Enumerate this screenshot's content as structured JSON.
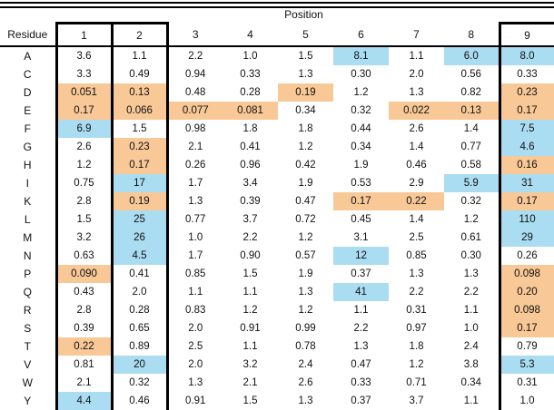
{
  "colors": {
    "highlight_blue": "#aadcf2",
    "highlight_orange": "#f8c897",
    "border": "#000000"
  },
  "chart_data": {
    "type": "table",
    "title": "Position",
    "row_header": "Residue",
    "columns": [
      "1",
      "2",
      "3",
      "4",
      "5",
      "6",
      "7",
      "8",
      "9"
    ],
    "boxed_columns": [
      "1",
      "2",
      "9"
    ],
    "highlight_legend": {
      "b": "blue",
      "o": "orange",
      "n": "none"
    },
    "rows": [
      {
        "residue": "A",
        "values": [
          "3.6",
          "1.1",
          "2.2",
          "1.0",
          "1.5",
          "8.1",
          "1.1",
          "6.0",
          "8.0"
        ],
        "highlights": [
          "n",
          "n",
          "n",
          "n",
          "n",
          "b",
          "n",
          "b",
          "b"
        ]
      },
      {
        "residue": "C",
        "values": [
          "3.3",
          "0.49",
          "0.94",
          "0.33",
          "1.3",
          "0.30",
          "2.0",
          "0.56",
          "0.33"
        ],
        "highlights": [
          "n",
          "n",
          "n",
          "n",
          "n",
          "n",
          "n",
          "n",
          "n"
        ]
      },
      {
        "residue": "D",
        "values": [
          "0.051",
          "0.13",
          "0.48",
          "0.28",
          "0.19",
          "1.2",
          "1.3",
          "0.82",
          "0.23"
        ],
        "highlights": [
          "o",
          "o",
          "n",
          "n",
          "o",
          "n",
          "n",
          "n",
          "o"
        ]
      },
      {
        "residue": "E",
        "values": [
          "0.17",
          "0.066",
          "0.077",
          "0.081",
          "0.34",
          "0.32",
          "0.022",
          "0.13",
          "0.17"
        ],
        "highlights": [
          "o",
          "o",
          "o",
          "o",
          "n",
          "n",
          "o",
          "o",
          "o"
        ]
      },
      {
        "residue": "F",
        "values": [
          "6.9",
          "1.5",
          "0.98",
          "1.8",
          "1.8",
          "0.44",
          "2.6",
          "1.4",
          "7.5"
        ],
        "highlights": [
          "b",
          "n",
          "n",
          "n",
          "n",
          "n",
          "n",
          "n",
          "b"
        ]
      },
      {
        "residue": "G",
        "values": [
          "2.6",
          "0.23",
          "2.1",
          "0.41",
          "1.2",
          "0.34",
          "1.4",
          "0.77",
          "4.6"
        ],
        "highlights": [
          "n",
          "o",
          "n",
          "n",
          "n",
          "n",
          "n",
          "n",
          "b"
        ]
      },
      {
        "residue": "H",
        "values": [
          "1.2",
          "0.17",
          "0.26",
          "0.96",
          "0.42",
          "1.9",
          "0.46",
          "0.58",
          "0.16"
        ],
        "highlights": [
          "n",
          "o",
          "n",
          "n",
          "n",
          "n",
          "n",
          "n",
          "o"
        ]
      },
      {
        "residue": "I",
        "values": [
          "0.75",
          "17",
          "1.7",
          "3.4",
          "1.9",
          "0.53",
          "2.9",
          "5.9",
          "31"
        ],
        "highlights": [
          "n",
          "b",
          "n",
          "n",
          "n",
          "n",
          "n",
          "b",
          "b"
        ]
      },
      {
        "residue": "K",
        "values": [
          "2.8",
          "0.19",
          "1.3",
          "0.39",
          "0.47",
          "0.17",
          "0.22",
          "0.32",
          "0.17"
        ],
        "highlights": [
          "n",
          "o",
          "n",
          "n",
          "n",
          "o",
          "o",
          "n",
          "o"
        ]
      },
      {
        "residue": "L",
        "values": [
          "1.5",
          "25",
          "0.77",
          "3.7",
          "0.72",
          "0.45",
          "1.4",
          "1.2",
          "110"
        ],
        "highlights": [
          "n",
          "b",
          "n",
          "n",
          "n",
          "n",
          "n",
          "n",
          "b"
        ]
      },
      {
        "residue": "M",
        "values": [
          "3.2",
          "26",
          "1.0",
          "2.2",
          "1.2",
          "3.1",
          "2.5",
          "0.61",
          "29"
        ],
        "highlights": [
          "n",
          "b",
          "n",
          "n",
          "n",
          "n",
          "n",
          "n",
          "b"
        ]
      },
      {
        "residue": "N",
        "values": [
          "0.63",
          "4.5",
          "1.7",
          "0.90",
          "0.57",
          "12",
          "0.85",
          "0.30",
          "0.26"
        ],
        "highlights": [
          "n",
          "b",
          "n",
          "n",
          "n",
          "b",
          "n",
          "n",
          "n"
        ]
      },
      {
        "residue": "P",
        "values": [
          "0.090",
          "0.41",
          "0.85",
          "1.5",
          "1.9",
          "0.37",
          "1.3",
          "1.3",
          "0.098"
        ],
        "highlights": [
          "o",
          "n",
          "n",
          "n",
          "n",
          "n",
          "n",
          "n",
          "o"
        ]
      },
      {
        "residue": "Q",
        "values": [
          "0.43",
          "2.0",
          "1.1",
          "1.1",
          "1.3",
          "41",
          "2.2",
          "2.2",
          "0.20"
        ],
        "highlights": [
          "n",
          "n",
          "n",
          "n",
          "n",
          "b",
          "n",
          "n",
          "o"
        ]
      },
      {
        "residue": "R",
        "values": [
          "2.8",
          "0.28",
          "0.83",
          "1.2",
          "1.2",
          "1.1",
          "0.31",
          "1.1",
          "0.098"
        ],
        "highlights": [
          "n",
          "n",
          "n",
          "n",
          "n",
          "n",
          "n",
          "n",
          "o"
        ]
      },
      {
        "residue": "S",
        "values": [
          "0.39",
          "0.65",
          "2.0",
          "0.91",
          "0.99",
          "2.2",
          "0.97",
          "1.0",
          "0.17"
        ],
        "highlights": [
          "n",
          "n",
          "n",
          "n",
          "n",
          "n",
          "n",
          "n",
          "o"
        ]
      },
      {
        "residue": "T",
        "values": [
          "0.22",
          "0.89",
          "2.5",
          "1.1",
          "0.78",
          "1.3",
          "1.8",
          "2.4",
          "0.79"
        ],
        "highlights": [
          "o",
          "n",
          "n",
          "n",
          "n",
          "n",
          "n",
          "n",
          "n"
        ]
      },
      {
        "residue": "V",
        "values": [
          "0.81",
          "20",
          "2.0",
          "3.2",
          "2.4",
          "0.47",
          "1.2",
          "3.8",
          "5.3"
        ],
        "highlights": [
          "n",
          "b",
          "n",
          "n",
          "n",
          "n",
          "n",
          "n",
          "b"
        ]
      },
      {
        "residue": "W",
        "values": [
          "2.1",
          "0.32",
          "1.3",
          "2.1",
          "2.6",
          "0.33",
          "0.71",
          "0.34",
          "0.31"
        ],
        "highlights": [
          "n",
          "n",
          "n",
          "n",
          "n",
          "n",
          "n",
          "n",
          "n"
        ]
      },
      {
        "residue": "Y",
        "values": [
          "4.4",
          "0.46",
          "0.91",
          "1.5",
          "1.3",
          "0.37",
          "3.7",
          "1.1",
          "1.0"
        ],
        "highlights": [
          "b",
          "n",
          "n",
          "n",
          "n",
          "n",
          "n",
          "n",
          "n"
        ]
      }
    ]
  }
}
